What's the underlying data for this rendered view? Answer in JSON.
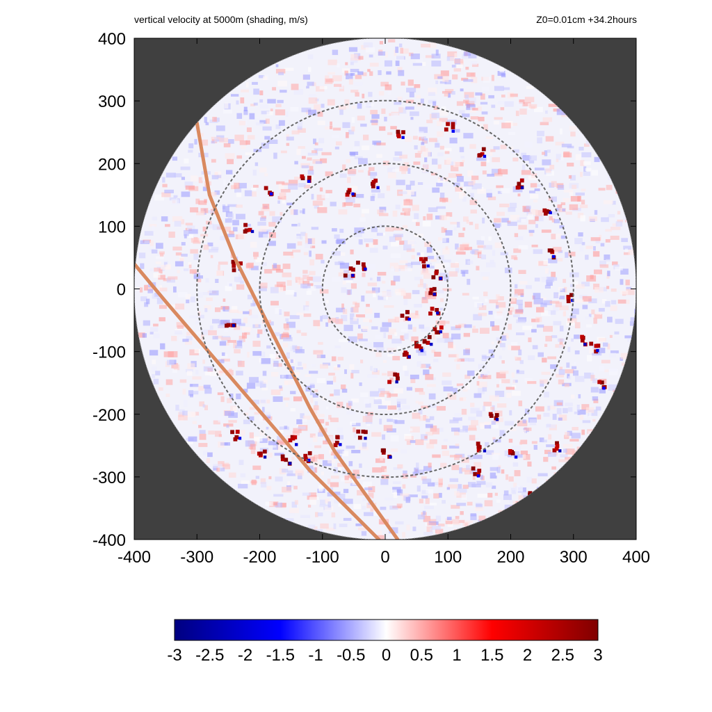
{
  "header": {
    "title": "vertical velocity at 5000m (shading, m/s)",
    "info": "Z0=0.01cm  +34.2hours"
  },
  "chart_data": {
    "type": "heatmap",
    "title": "vertical velocity at 5000m (shading, m/s)",
    "subtitle": "Z0=0.01cm  +34.2hours",
    "xlabel": "",
    "ylabel": "",
    "xlim": [
      -400,
      400
    ],
    "ylim": [
      -400,
      400
    ],
    "x_ticks": [
      -400,
      -300,
      -200,
      -100,
      0,
      100,
      200,
      300,
      400
    ],
    "y_ticks": [
      -400,
      -300,
      -200,
      -100,
      0,
      100,
      200,
      300,
      400
    ],
    "domain_radius": 400,
    "reference_circles_radius": [
      100,
      200,
      300
    ],
    "colorbar": {
      "min": -3,
      "max": 3,
      "ticks": [
        -3,
        -2.5,
        -2,
        -1.5,
        -1,
        -0.5,
        0,
        0.5,
        1,
        1.5,
        2,
        2.5,
        3
      ],
      "colors": [
        "#000080",
        "#0000ff",
        "#ffffff",
        "#ff0000",
        "#800000"
      ]
    },
    "colors": {
      "outside_domain": "#404040",
      "track_line": "#d9895f",
      "circle_line": "#666666"
    },
    "track_lines": [
      {
        "points": [
          [
            -300,
            265
          ],
          [
            -280,
            150
          ],
          [
            -240,
            50
          ],
          [
            -200,
            -30
          ],
          [
            -160,
            -110
          ],
          [
            -120,
            -190
          ],
          [
            -80,
            -260
          ],
          [
            -30,
            -330
          ],
          [
            20,
            -400
          ]
        ]
      },
      {
        "points": [
          [
            -400,
            40
          ],
          [
            -350,
            -20
          ],
          [
            -290,
            -90
          ],
          [
            -230,
            -160
          ],
          [
            -170,
            -230
          ],
          [
            -120,
            -290
          ],
          [
            -70,
            -340
          ],
          [
            -10,
            -400
          ]
        ]
      }
    ],
    "updraft_cells_approx": [
      [
        60,
        45
      ],
      [
        80,
        25
      ],
      [
        70,
        0
      ],
      [
        75,
        -30
      ],
      [
        80,
        -60
      ],
      [
        65,
        -80
      ],
      [
        50,
        -90
      ],
      [
        30,
        -40
      ],
      [
        -60,
        160
      ],
      [
        -20,
        170
      ],
      [
        20,
        250
      ],
      [
        100,
        260
      ],
      [
        150,
        220
      ],
      [
        210,
        170
      ],
      [
        255,
        130
      ],
      [
        260,
        60
      ],
      [
        290,
        -10
      ],
      [
        310,
        -80
      ],
      [
        330,
        -90
      ],
      [
        340,
        -150
      ],
      [
        270,
        -250
      ],
      [
        200,
        -260
      ],
      [
        170,
        -200
      ],
      [
        150,
        -250
      ],
      [
        140,
        -290
      ],
      [
        230,
        -320
      ],
      [
        -130,
        180
      ],
      [
        -190,
        160
      ],
      [
        -220,
        100
      ],
      [
        -240,
        40
      ],
      [
        -250,
        -50
      ],
      [
        -240,
        -230
      ],
      [
        -150,
        -240
      ],
      [
        -130,
        -265
      ],
      [
        -80,
        -240
      ],
      [
        -40,
        -230
      ],
      [
        0,
        -260
      ],
      [
        -160,
        -270
      ],
      [
        -200,
        -260
      ],
      [
        30,
        -100
      ],
      [
        10,
        -140
      ],
      [
        -60,
        30
      ],
      [
        -40,
        40
      ]
    ]
  }
}
